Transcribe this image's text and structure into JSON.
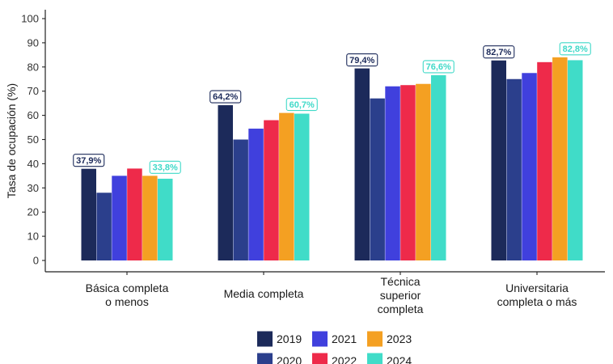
{
  "chart_data": {
    "type": "bar",
    "ylabel": "Tasa de ocupación (%)",
    "xlabel": "",
    "ylim": [
      0,
      100
    ],
    "yticks": [
      0,
      10,
      20,
      30,
      40,
      50,
      60,
      70,
      80,
      90,
      100
    ],
    "grid": false,
    "legend_position": "bottom",
    "categories": [
      [
        "Básica completa",
        "o menos"
      ],
      [
        "Media completa"
      ],
      [
        "Técnica",
        "superior",
        "completa"
      ],
      [
        "Universitaria",
        "completa o más"
      ]
    ],
    "series": [
      {
        "name": "2019",
        "color": "#1c2a5a",
        "values": [
          37.9,
          64.2,
          79.4,
          82.7
        ],
        "labels": [
          "37,9%",
          "64,2%",
          "79,4%",
          "82,7%"
        ]
      },
      {
        "name": "2020",
        "color": "#2b3f8c",
        "values": [
          28.0,
          50.0,
          67.0,
          75.0
        ]
      },
      {
        "name": "2021",
        "color": "#4040dd",
        "values": [
          35.0,
          54.5,
          72.0,
          77.5
        ]
      },
      {
        "name": "2022",
        "color": "#ee2a4a",
        "values": [
          38.0,
          58.0,
          72.5,
          82.0
        ]
      },
      {
        "name": "2023",
        "color": "#f4a022",
        "values": [
          35.0,
          61.0,
          73.0,
          84.0
        ]
      },
      {
        "name": "2024",
        "color": "#40dcc8",
        "values": [
          33.8,
          60.7,
          76.6,
          82.8
        ],
        "labels": [
          "33,8%",
          "60,7%",
          "76,6%",
          "82,8%"
        ]
      }
    ]
  }
}
